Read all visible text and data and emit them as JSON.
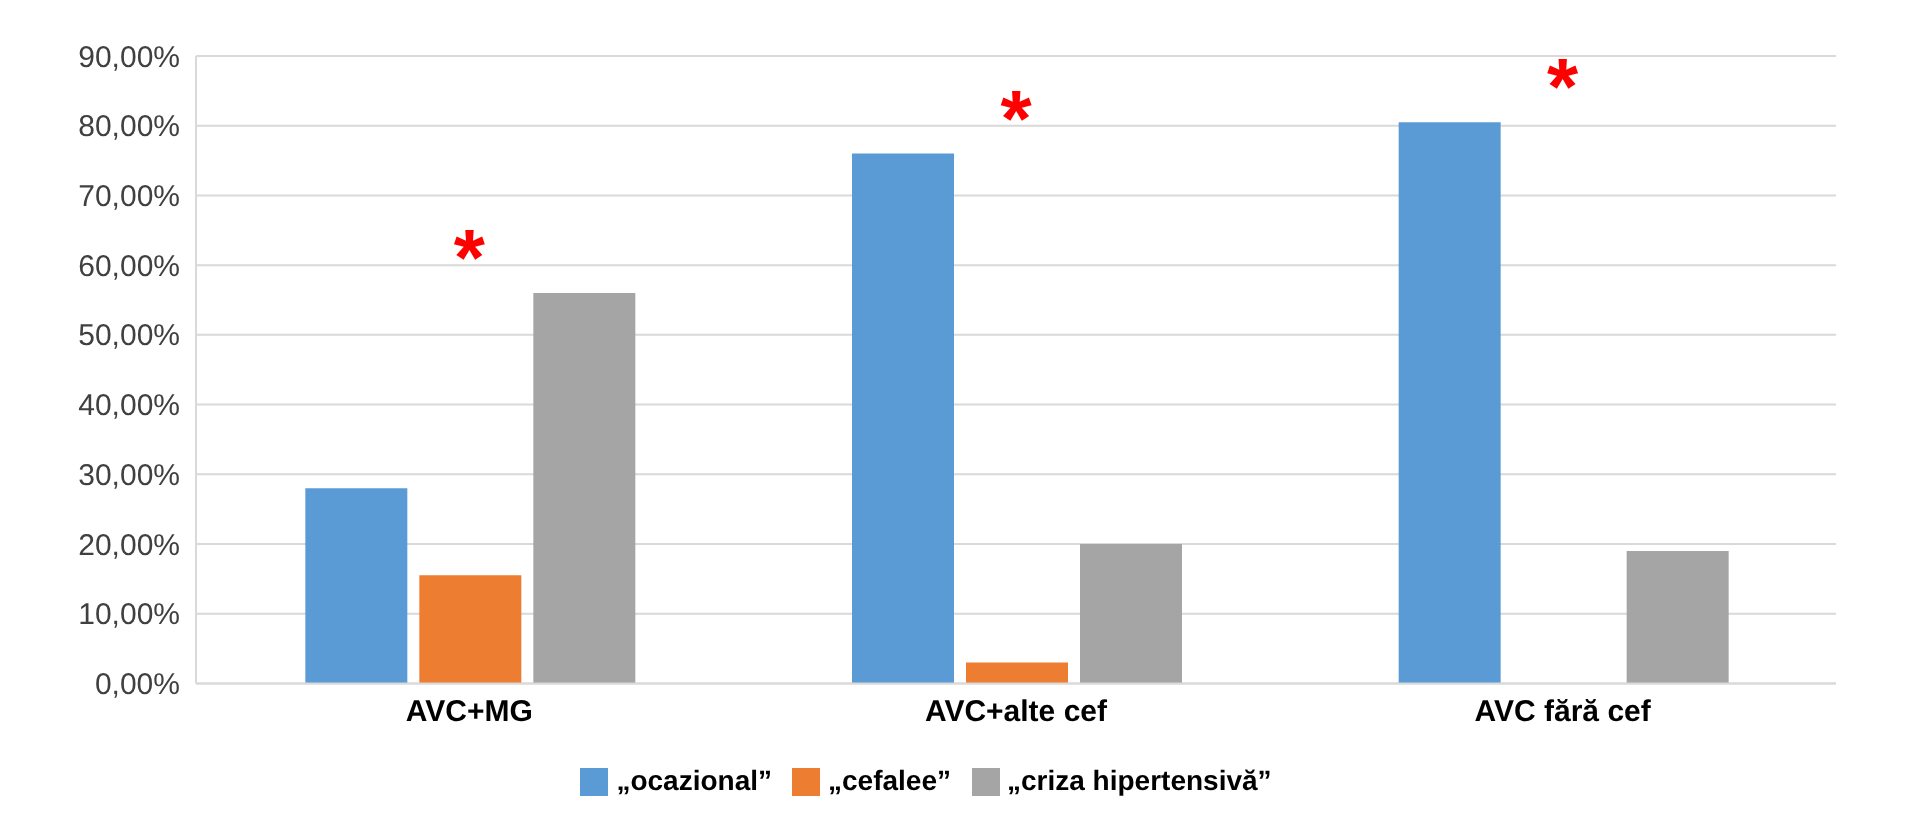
{
  "chart_data": {
    "type": "bar",
    "categories": [
      "AVC+MG",
      "AVC+alte cef",
      "AVC fără cef"
    ],
    "series": [
      {
        "name": "„ocazional”",
        "color": "#5b9bd5",
        "values": [
          28,
          76,
          80.5
        ]
      },
      {
        "name": "„cefalee”",
        "color": "#ed7d31",
        "values": [
          15.5,
          3,
          0
        ]
      },
      {
        "name": "„criza hipertensivă”",
        "color": "#a5a5a5",
        "values": [
          56,
          20,
          19
        ]
      }
    ],
    "ylim": [
      0,
      90
    ],
    "yticks": [
      {
        "value": 0,
        "label": "0,00%"
      },
      {
        "value": 10,
        "label": "10,00%"
      },
      {
        "value": 20,
        "label": "20,00%"
      },
      {
        "value": 30,
        "label": "30,00%"
      },
      {
        "value": 40,
        "label": "40,00%"
      },
      {
        "value": 50,
        "label": "50,00%"
      },
      {
        "value": 60,
        "label": "60,00%"
      },
      {
        "value": 70,
        "label": "70,00%"
      },
      {
        "value": 80,
        "label": "80,00%"
      },
      {
        "value": 90,
        "label": "90,00%"
      }
    ],
    "grid": "y",
    "legend": "bottom",
    "annotations": [
      "*",
      "*",
      "*"
    ]
  }
}
